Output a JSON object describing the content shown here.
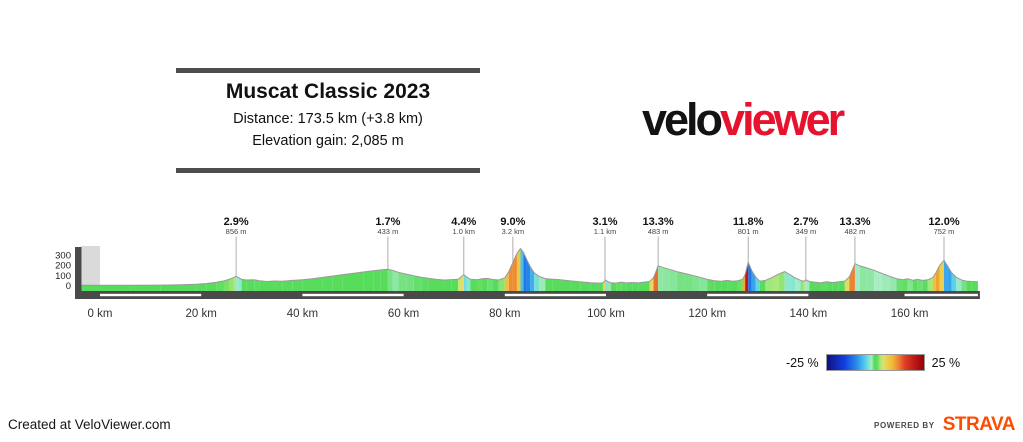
{
  "header": {
    "title": "Muscat Classic 2023",
    "distance": "Distance: 173.5 km (+3.8 km)",
    "elevation_gain": "Elevation gain: 2,085 m"
  },
  "logo": {
    "part_black": "velo",
    "part_red": "viewer",
    "red_color": "#e7132e"
  },
  "legend": {
    "min_label": "-25 %",
    "max_label": "25 %"
  },
  "footer": {
    "created_at": "Created at VeloViewer.com",
    "powered_by": "POWERED BY",
    "brand": "STRAVA",
    "brand_color": "#fc4c02"
  },
  "chart_data": {
    "type": "area",
    "title": "Muscat Classic 2023 elevation profile",
    "x_unit": "km",
    "y_unit": "m",
    "distance_km": 173.5,
    "neutral_extra_km": 3.8,
    "elevation_gain_m": 2085,
    "x_range_km": [
      -3.8,
      173.5
    ],
    "neutral_zone": {
      "from_km": -3.8,
      "to_km": 0,
      "color": "#dadada"
    },
    "x_ticks": [
      {
        "km": 0,
        "label": "0 km"
      },
      {
        "km": 20,
        "label": "20 km"
      },
      {
        "km": 40,
        "label": "40 km"
      },
      {
        "km": 60,
        "label": "60 km"
      },
      {
        "km": 80,
        "label": "80 km"
      },
      {
        "km": 100,
        "label": "100 km"
      },
      {
        "km": 120,
        "label": "120 km"
      },
      {
        "km": 140,
        "label": "140 km"
      },
      {
        "km": 160,
        "label": "160 km"
      }
    ],
    "y_ticks": [
      {
        "m": 0,
        "label": "0"
      },
      {
        "m": 100,
        "label": "100"
      },
      {
        "m": 200,
        "label": "200"
      },
      {
        "m": 300,
        "label": "300"
      }
    ],
    "climbs": [
      {
        "gradient": "2.9%",
        "length": "856 m",
        "km": 26.9
      },
      {
        "gradient": "1.7%",
        "length": "433 m",
        "km": 56.9
      },
      {
        "gradient": "4.4%",
        "length": "1.0 km",
        "km": 71.9
      },
      {
        "gradient": "9.0%",
        "length": "3.2 km",
        "km": 81.6
      },
      {
        "gradient": "3.1%",
        "length": "1.1 km",
        "km": 99.8
      },
      {
        "gradient": "13.3%",
        "length": "483 m",
        "km": 110.3
      },
      {
        "gradient": "11.8%",
        "length": "801 m",
        "km": 128.1
      },
      {
        "gradient": "2.7%",
        "length": "349 m",
        "km": 139.5
      },
      {
        "gradient": "13.3%",
        "length": "482 m",
        "km": 149.2
      },
      {
        "gradient": "12.0%",
        "length": "752 m",
        "km": 166.8
      }
    ],
    "axis_stripes_km": [
      [
        0,
        20
      ],
      [
        40,
        60
      ],
      [
        80,
        100
      ],
      [
        120,
        140
      ],
      [
        159,
        173.5
      ]
    ],
    "gradient_scale": {
      "min_pct": -25,
      "max_pct": 25,
      "colormap": [
        [
          -25,
          "#101080"
        ],
        [
          -16,
          "#1040e0"
        ],
        [
          -10,
          "#2888e8"
        ],
        [
          -6,
          "#4cc4f0"
        ],
        [
          -3.5,
          "#7ce4d4"
        ],
        [
          -2,
          "#a8ecc4"
        ],
        [
          -0.7,
          "#58dc5c"
        ],
        [
          0.7,
          "#58dc5c"
        ],
        [
          2.5,
          "#a8e87c"
        ],
        [
          4,
          "#dce070"
        ],
        [
          6,
          "#ecd04c"
        ],
        [
          9,
          "#f0b434"
        ],
        [
          12,
          "#ec8030"
        ],
        [
          15,
          "#e04028"
        ],
        [
          20,
          "#c01818"
        ],
        [
          25,
          "#980000"
        ]
      ]
    },
    "profile": [
      [
        -3.8,
        4
      ],
      [
        0,
        4
      ],
      [
        6,
        4
      ],
      [
        12,
        6
      ],
      [
        16,
        10
      ],
      [
        19,
        14
      ],
      [
        21,
        22
      ],
      [
        23,
        34
      ],
      [
        24.5,
        48
      ],
      [
        25.5,
        62
      ],
      [
        26.4,
        80
      ],
      [
        26.9,
        93
      ],
      [
        27.4,
        80
      ],
      [
        28,
        62
      ],
      [
        29,
        56
      ],
      [
        30.5,
        58
      ],
      [
        31.5,
        50
      ],
      [
        33,
        42
      ],
      [
        34.5,
        47
      ],
      [
        36,
        44
      ],
      [
        38,
        52
      ],
      [
        40,
        58
      ],
      [
        42,
        68
      ],
      [
        44,
        82
      ],
      [
        46,
        96
      ],
      [
        48,
        110
      ],
      [
        50,
        122
      ],
      [
        52,
        136
      ],
      [
        54,
        148
      ],
      [
        55.5,
        156
      ],
      [
        56.9,
        163
      ],
      [
        57.8,
        152
      ],
      [
        59,
        133
      ],
      [
        60.5,
        115
      ],
      [
        62,
        98
      ],
      [
        63.5,
        84
      ],
      [
        65,
        72
      ],
      [
        66.5,
        62
      ],
      [
        68,
        56
      ],
      [
        69.5,
        60
      ],
      [
        70.8,
        64
      ],
      [
        71.9,
        110
      ],
      [
        72.5,
        86
      ],
      [
        73.2,
        64
      ],
      [
        74.5,
        58
      ],
      [
        75.5,
        68
      ],
      [
        76.5,
        72
      ],
      [
        77.5,
        62
      ],
      [
        78.8,
        56
      ],
      [
        80,
        78
      ],
      [
        80.8,
        140
      ],
      [
        81.6,
        230
      ],
      [
        82.4,
        320
      ],
      [
        83.1,
        368
      ],
      [
        83.7,
        330
      ],
      [
        84.3,
        262
      ],
      [
        85,
        190
      ],
      [
        85.8,
        130
      ],
      [
        86.8,
        92
      ],
      [
        88,
        70
      ],
      [
        89.5,
        64
      ],
      [
        91,
        58
      ],
      [
        93,
        48
      ],
      [
        95,
        38
      ],
      [
        97,
        30
      ],
      [
        98.5,
        26
      ],
      [
        99.4,
        28
      ],
      [
        99.9,
        56
      ],
      [
        100.4,
        40
      ],
      [
        101,
        30
      ],
      [
        102,
        26
      ],
      [
        103,
        36
      ],
      [
        104,
        28
      ],
      [
        105.2,
        32
      ],
      [
        106.4,
        28
      ],
      [
        107.5,
        36
      ],
      [
        108.6,
        42
      ],
      [
        109.4,
        80
      ],
      [
        110.3,
        196
      ],
      [
        111.2,
        182
      ],
      [
        112.5,
        162
      ],
      [
        114,
        140
      ],
      [
        115.5,
        122
      ],
      [
        117,
        104
      ],
      [
        118.5,
        84
      ],
      [
        120,
        62
      ],
      [
        121.5,
        50
      ],
      [
        122.8,
        44
      ],
      [
        124,
        52
      ],
      [
        125,
        44
      ],
      [
        126,
        50
      ],
      [
        127,
        62
      ],
      [
        127.5,
        110
      ],
      [
        128.1,
        232
      ],
      [
        128.8,
        150
      ],
      [
        129.6,
        84
      ],
      [
        130.4,
        46
      ],
      [
        131.5,
        52
      ],
      [
        132.8,
        82
      ],
      [
        134.2,
        118
      ],
      [
        135.3,
        140
      ],
      [
        136.4,
        108
      ],
      [
        137.4,
        76
      ],
      [
        138.4,
        54
      ],
      [
        139.1,
        44
      ],
      [
        139.5,
        58
      ],
      [
        140.2,
        42
      ],
      [
        141.2,
        36
      ],
      [
        142.4,
        30
      ],
      [
        143.6,
        40
      ],
      [
        144.8,
        32
      ],
      [
        146,
        40
      ],
      [
        147.2,
        46
      ],
      [
        148.1,
        88
      ],
      [
        149.2,
        218
      ],
      [
        150.2,
        196
      ],
      [
        151.5,
        176
      ],
      [
        153,
        152
      ],
      [
        154.5,
        122
      ],
      [
        156,
        94
      ],
      [
        157.4,
        70
      ],
      [
        158.6,
        58
      ],
      [
        159.6,
        68
      ],
      [
        160.6,
        54
      ],
      [
        161.6,
        62
      ],
      [
        162.6,
        52
      ],
      [
        163.6,
        58
      ],
      [
        164.6,
        82
      ],
      [
        165.2,
        128
      ],
      [
        165.9,
        198
      ],
      [
        166.8,
        252
      ],
      [
        167.5,
        196
      ],
      [
        168.3,
        130
      ],
      [
        169.2,
        84
      ],
      [
        170.2,
        58
      ],
      [
        171.2,
        46
      ],
      [
        172.3,
        42
      ],
      [
        173.5,
        40
      ]
    ]
  }
}
